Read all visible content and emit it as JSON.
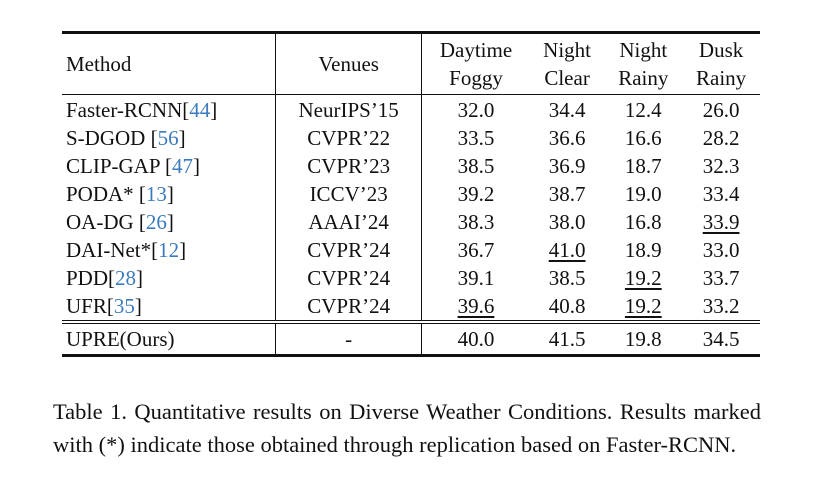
{
  "table": {
    "headers": {
      "method": "Method",
      "venues": "Venues",
      "c1_line1": "Daytime",
      "c1_line2": "Foggy",
      "c2_line1": "Night",
      "c2_line2": "Clear",
      "c3_line1": "Night",
      "c3_line2": "Rainy",
      "c4_line1": "Dusk",
      "c4_line2": "Rainy"
    },
    "rows": [
      {
        "method": "Faster-RCNN[",
        "ref": "44",
        "close": "]",
        "venue": "NeurIPS’15",
        "v": [
          "32.0",
          "34.4",
          "12.4",
          "26.0"
        ]
      },
      {
        "method": "S-DGOD [",
        "ref": "56",
        "close": "]",
        "venue": "CVPR’22",
        "v": [
          "33.5",
          "36.6",
          "16.6",
          "28.2"
        ]
      },
      {
        "method": "CLIP-GAP [",
        "ref": "47",
        "close": "]",
        "venue": "CVPR’23",
        "v": [
          "38.5",
          "36.9",
          "18.7",
          "32.3"
        ]
      },
      {
        "method": "PODA* [",
        "ref": "13",
        "close": "]",
        "venue": "ICCV’23",
        "v": [
          "39.2",
          "38.7",
          "19.0",
          "33.4"
        ]
      },
      {
        "method": "OA-DG [",
        "ref": "26",
        "close": "]",
        "venue": "AAAI’24",
        "v": [
          "38.3",
          "38.0",
          "16.8",
          "33.9"
        ]
      },
      {
        "method": "DAI-Net*[",
        "ref": "12",
        "close": "]",
        "venue": "CVPR’24",
        "v": [
          "36.7",
          "41.0",
          "18.9",
          "33.0"
        ]
      },
      {
        "method": "PDD[",
        "ref": "28",
        "close": "]",
        "venue": "CVPR’24",
        "v": [
          "39.1",
          "38.5",
          "19.2",
          "33.7"
        ]
      },
      {
        "method": "UFR[",
        "ref": "35",
        "close": "]",
        "venue": "CVPR’24",
        "v": [
          "39.6",
          "40.8",
          "19.2",
          "33.2"
        ]
      }
    ],
    "ours": {
      "method": "UPRE(Ours)",
      "venue": "-",
      "v": [
        "40.0",
        "41.5",
        "19.8",
        "34.5"
      ]
    }
  },
  "caption": "Table 1. Quantitative results on Diverse Weather Conditions. Results marked with (*) indicate those obtained through replication based on Faster-RCNN.",
  "colors": {
    "citation": "#3a7bbf",
    "text": "#111111"
  }
}
